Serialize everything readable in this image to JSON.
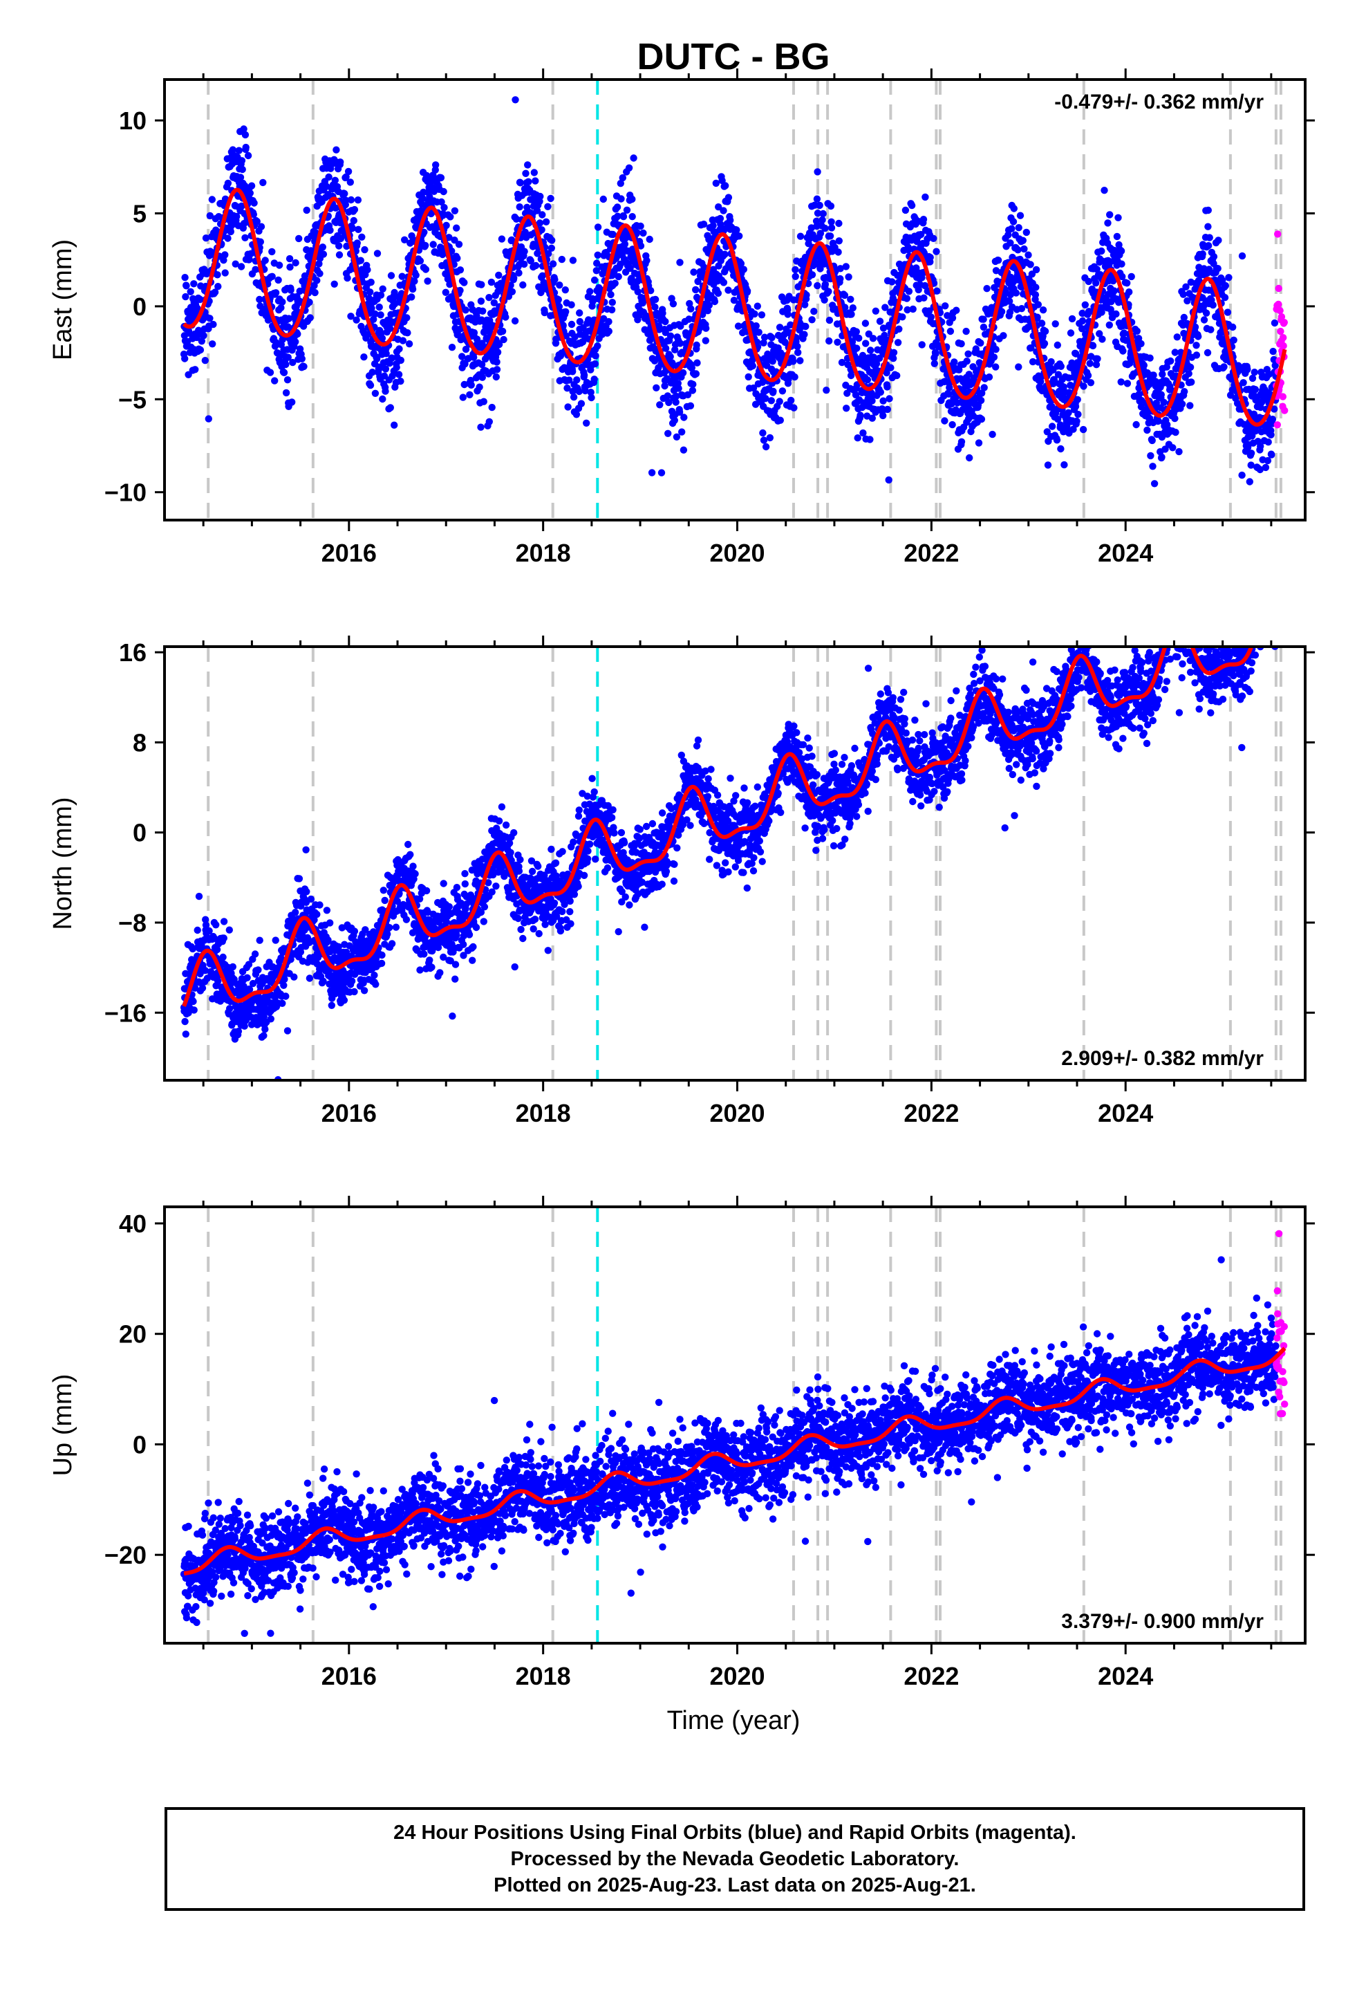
{
  "chart_data": {
    "type": "scatter",
    "title": "DUTC - BG",
    "xlabel": "Time (year)",
    "x_ticks": [
      2016,
      2018,
      2020,
      2022,
      2024
    ],
    "xlim": [
      2014.1,
      2025.85
    ],
    "start_year": 2014.3,
    "end_year": 2025.64,
    "rapid_start": 2025.55,
    "colors": {
      "final_orbits": "#0000ff",
      "rapid_orbits": "#ff00ff",
      "model_fit": "#ff0000",
      "equipment_change": "#c8c8c8",
      "event": "#00e5e5"
    },
    "gray_dashed_lines": [
      2014.55,
      2015.63,
      2018.1,
      2020.58,
      2020.83,
      2020.93,
      2021.58,
      2022.05,
      2022.09,
      2023.57,
      2025.08,
      2025.55,
      2025.6
    ],
    "cyan_dashed_lines": [
      2018.56
    ],
    "panels": [
      {
        "ylabel": "East (mm)",
        "ylim": [
          -11.5,
          12.2
        ],
        "yticks": [
          10,
          5,
          0,
          -5,
          -10
        ],
        "rate_label": "-0.479+/- 0.362 mm/yr",
        "rate_position": "top-right",
        "model": {
          "offset": -0.3,
          "rate": -0.479,
          "amplitude": 3.8,
          "peak_phase": 0.85,
          "semi_amplitude": 0.3,
          "noise": 1.5
        }
      },
      {
        "ylabel": "North (mm)",
        "ylim": [
          -22,
          16.5
        ],
        "yticks": [
          16,
          8,
          0,
          -8,
          -16
        ],
        "rate_label": "2.909+/- 0.382 mm/yr",
        "rate_position": "bottom-right",
        "model": {
          "offset": 1.8,
          "rate": 2.909,
          "amplitude": 2.6,
          "peak_phase": 0.53,
          "semi_amplitude": 1.0,
          "noise": 1.6
        }
      },
      {
        "ylabel": "Up (mm)",
        "ylim": [
          -36,
          43
        ],
        "yticks": [
          40,
          20,
          0,
          -20
        ],
        "rate_label": "3.379+/- 0.900 mm/yr",
        "rate_position": "bottom-right",
        "model": {
          "offset": -3.0,
          "rate": 3.379,
          "amplitude": 1.6,
          "peak_phase": 0.75,
          "semi_amplitude": 0.5,
          "noise": 3.8
        }
      }
    ]
  },
  "footer": {
    "line1": "24 Hour Positions Using Final Orbits (blue) and Rapid Orbits (magenta).",
    "line2": "Processed by the Nevada Geodetic Laboratory.",
    "line3": "Plotted on 2025-Aug-23. Last data on 2025-Aug-21."
  }
}
